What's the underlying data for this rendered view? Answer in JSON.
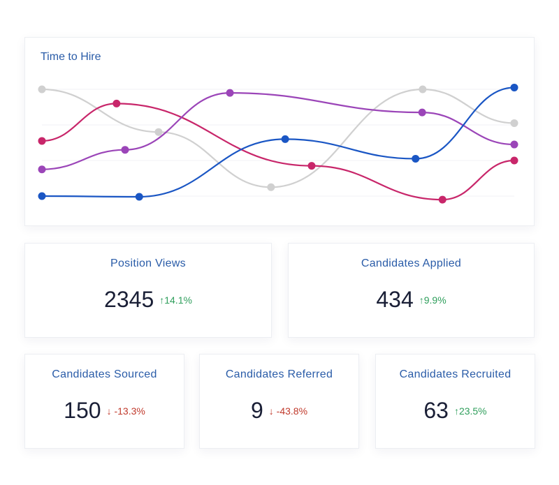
{
  "chart_data": {
    "type": "line",
    "title": "Time to Hire",
    "xlabel": "",
    "ylabel": "",
    "xlim": [
      0,
      100
    ],
    "ylim": [
      0,
      3
    ],
    "grid": true,
    "series": [
      {
        "color": "#d0d0d0",
        "x": [
          0,
          24.7,
          48.5,
          80.6,
          100
        ],
        "y": [
          3.0,
          1.8,
          0.25,
          3.0,
          2.05
        ]
      },
      {
        "color": "#c8266a",
        "x": [
          0,
          15.8,
          57.1,
          84.8,
          100
        ],
        "y": [
          1.55,
          2.6,
          0.85,
          -0.1,
          1.0
        ]
      },
      {
        "color": "#9b45b8",
        "x": [
          0,
          17.6,
          39.8,
          80.5,
          100
        ],
        "y": [
          0.75,
          1.3,
          2.9,
          2.35,
          1.45
        ]
      },
      {
        "color": "#1a56c4",
        "x": [
          0,
          20.6,
          51.5,
          79.1,
          100
        ],
        "y": [
          0.0,
          -0.02,
          1.6,
          1.05,
          3.05
        ]
      }
    ]
  },
  "stats": [
    {
      "label": "Position Views",
      "value": "2345",
      "change": "14.1%",
      "direction": "up"
    },
    {
      "label": "Candidates Applied",
      "value": "434",
      "change": "9.9%",
      "direction": "up"
    },
    {
      "label": "Candidates Sourced",
      "value": "150",
      "change": "-13.3%",
      "direction": "down"
    },
    {
      "label": "Candidates Referred",
      "value": "9",
      "change": "-43.8%",
      "direction": "down"
    },
    {
      "label": "Candidates Recruited",
      "value": "63",
      "change": "23.5%",
      "direction": "up"
    }
  ],
  "icons": {
    "up": "arrow-up-icon",
    "down": "arrow-down-icon",
    "up_glyph": "↑",
    "down_glyph": "↓"
  },
  "colors": {
    "title": "#2a5ca8",
    "positive": "#2e9e5b",
    "negative": "#c0392b"
  }
}
